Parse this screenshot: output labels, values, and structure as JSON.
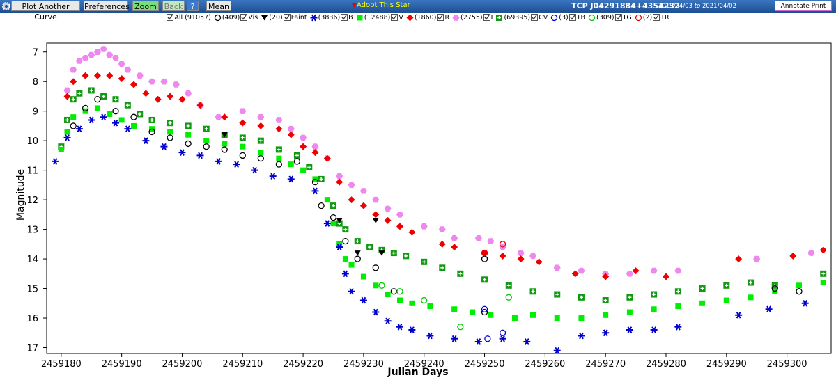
{
  "toolbar": {
    "buttons": [
      "Plot Another Curve",
      "Preferences",
      "Zoom",
      "Back",
      "?",
      "Mean"
    ],
    "adopt": "Adopt This Star",
    "star": "TCP J04291884+4354232",
    "date_from": "2019/04/03",
    "date_sep": "to",
    "date_to": "2021/04/02",
    "annotate": "Annotate Print"
  },
  "legend_all": "All (91057)",
  "chart_data": {
    "type": "scatter",
    "x_label": "Julian Days",
    "y_label": "Magnitude",
    "xlim": [
      2459177.6,
      2459307.3
    ],
    "ylim": [
      17.2,
      6.7
    ],
    "xticks": [
      2459180,
      2459190,
      2459200,
      2459210,
      2459220,
      2459230,
      2459240,
      2459250,
      2459260,
      2459270,
      2459280,
      2459290,
      2459300
    ],
    "yticks": [
      7,
      8,
      9,
      10,
      11,
      12,
      13,
      14,
      15,
      16,
      17
    ],
    "grid": false,
    "series": [
      {
        "name": "Vis",
        "count_label": "(409)",
        "marker": "circle",
        "color": "#000000",
        "x": [
          2459182,
          2459184,
          2459186,
          2459189,
          2459192,
          2459195,
          2459198,
          2459201,
          2459204,
          2459207,
          2459210,
          2459213,
          2459216,
          2459219,
          2459222,
          2459223,
          2459225,
          2459227,
          2459229,
          2459232,
          2459235,
          2459250,
          2459250,
          2459298,
          2459302
        ],
        "values": [
          9.5,
          8.9,
          8.6,
          9.0,
          9.2,
          9.7,
          9.9,
          10.1,
          10.2,
          10.3,
          10.5,
          10.6,
          10.8,
          10.7,
          11.4,
          12.2,
          12.6,
          13.4,
          14.0,
          14.3,
          15.1,
          14.0,
          15.8,
          15.0,
          15.1
        ]
      },
      {
        "name": "Faint",
        "count_label": "(20)",
        "marker": "triangle",
        "color": "#000000",
        "x": [
          2459207,
          2459226,
          2459229,
          2459232,
          2459233
        ],
        "values": [
          9.8,
          12.7,
          13.8,
          12.7,
          13.8
        ]
      },
      {
        "name": "B",
        "count_label": "(3836)",
        "marker": "asterisk",
        "color": "#0000cc",
        "x": [
          2459179,
          2459181,
          2459183,
          2459185,
          2459187,
          2459189,
          2459191,
          2459194,
          2459197,
          2459200,
          2459203,
          2459206,
          2459209,
          2459212,
          2459215,
          2459218,
          2459222,
          2459224,
          2459226,
          2459227,
          2459228,
          2459230,
          2459232,
          2459234,
          2459236,
          2459238,
          2459241,
          2459245,
          2459249,
          2459253,
          2459257,
          2459262,
          2459266,
          2459270,
          2459274,
          2459278,
          2459282,
          2459292,
          2459297,
          2459303
        ],
        "values": [
          10.7,
          9.9,
          9.6,
          9.3,
          9.2,
          9.4,
          9.6,
          10.0,
          10.2,
          10.4,
          10.5,
          10.7,
          10.8,
          11.0,
          11.2,
          11.3,
          11.7,
          12.8,
          13.6,
          14.5,
          15.1,
          15.4,
          15.8,
          16.1,
          16.3,
          16.4,
          16.6,
          16.7,
          16.8,
          16.7,
          16.8,
          17.1,
          16.6,
          16.5,
          16.4,
          16.4,
          16.3,
          15.9,
          15.7,
          15.5
        ]
      },
      {
        "name": "V",
        "count_label": "(12488)",
        "marker": "square",
        "color": "#00ee00",
        "x": [
          2459180,
          2459181,
          2459182,
          2459184,
          2459186,
          2459188,
          2459190,
          2459192,
          2459195,
          2459198,
          2459201,
          2459204,
          2459207,
          2459210,
          2459213,
          2459216,
          2459218,
          2459220,
          2459222,
          2459224,
          2459225,
          2459226,
          2459227,
          2459228,
          2459230,
          2459232,
          2459234,
          2459236,
          2459238,
          2459241,
          2459245,
          2459248,
          2459251,
          2459255,
          2459258,
          2459262,
          2459266,
          2459270,
          2459274,
          2459278,
          2459282,
          2459286,
          2459290,
          2459294,
          2459298,
          2459302,
          2459306
        ],
        "values": [
          10.3,
          9.7,
          9.2,
          9.0,
          8.9,
          9.1,
          9.3,
          9.5,
          9.6,
          9.7,
          9.8,
          10.0,
          10.1,
          10.2,
          10.4,
          10.6,
          10.8,
          11.0,
          11.3,
          12.0,
          12.8,
          13.5,
          14.0,
          14.2,
          14.6,
          14.9,
          15.2,
          15.4,
          15.5,
          15.6,
          15.7,
          15.8,
          15.9,
          16.0,
          15.9,
          16.0,
          16.0,
          15.9,
          15.8,
          15.7,
          15.6,
          15.5,
          15.4,
          15.3,
          15.1,
          14.9,
          14.8
        ]
      },
      {
        "name": "R",
        "count_label": "(1860)",
        "marker": "diamond",
        "color": "#ee0000",
        "x": [
          2459181,
          2459182,
          2459184,
          2459186,
          2459188,
          2459190,
          2459192,
          2459194,
          2459196,
          2459198,
          2459200,
          2459203,
          2459207,
          2459210,
          2459213,
          2459216,
          2459218,
          2459220,
          2459222,
          2459224,
          2459226,
          2459228,
          2459230,
          2459232,
          2459234,
          2459236,
          2459238,
          2459243,
          2459245,
          2459250,
          2459253,
          2459256,
          2459259,
          2459265,
          2459270,
          2459275,
          2459280,
          2459292,
          2459301,
          2459306
        ],
        "values": [
          8.5,
          8.0,
          7.8,
          7.8,
          7.8,
          7.9,
          8.1,
          8.4,
          8.6,
          8.5,
          8.6,
          8.8,
          9.2,
          9.4,
          9.5,
          9.6,
          9.8,
          10.2,
          10.4,
          10.6,
          11.4,
          12.0,
          12.2,
          12.5,
          12.7,
          12.9,
          13.1,
          13.5,
          13.6,
          13.8,
          13.9,
          14.0,
          14.1,
          14.5,
          14.6,
          14.4,
          14.6,
          14.0,
          13.9,
          13.7
        ]
      },
      {
        "name": "I",
        "count_label": "(2755)",
        "marker": "hexagon",
        "color": "#ee88ee",
        "x": [
          2459181,
          2459182,
          2459183,
          2459184,
          2459185,
          2459186,
          2459187,
          2459188,
          2459189,
          2459190,
          2459191,
          2459193,
          2459195,
          2459197,
          2459199,
          2459201,
          2459203,
          2459206,
          2459210,
          2459213,
          2459216,
          2459218,
          2459220,
          2459222,
          2459224,
          2459226,
          2459228,
          2459230,
          2459232,
          2459234,
          2459236,
          2459240,
          2459243,
          2459245,
          2459249,
          2459251,
          2459253,
          2459256,
          2459258,
          2459262,
          2459266,
          2459270,
          2459274,
          2459278,
          2459282,
          2459295,
          2459304
        ],
        "values": [
          8.3,
          7.6,
          7.3,
          7.2,
          7.1,
          7.0,
          6.9,
          7.1,
          7.2,
          7.4,
          7.6,
          7.8,
          8.0,
          8.0,
          8.1,
          8.4,
          8.8,
          9.2,
          9.0,
          9.2,
          9.3,
          9.6,
          9.9,
          10.2,
          10.6,
          11.2,
          11.5,
          11.7,
          12.0,
          12.3,
          12.5,
          12.9,
          13.0,
          13.3,
          13.3,
          13.4,
          13.6,
          13.8,
          13.9,
          14.3,
          14.4,
          14.5,
          14.5,
          14.4,
          14.4,
          14.0,
          13.8
        ]
      },
      {
        "name": "CV",
        "count_label": "(69395)",
        "marker": "crossbox",
        "color": "#119911",
        "x": [
          2459180,
          2459181,
          2459182,
          2459183,
          2459185,
          2459187,
          2459189,
          2459191,
          2459193,
          2459195,
          2459198,
          2459201,
          2459204,
          2459207,
          2459210,
          2459213,
          2459216,
          2459219,
          2459221,
          2459223,
          2459225,
          2459226,
          2459227,
          2459229,
          2459231,
          2459233,
          2459235,
          2459237,
          2459240,
          2459243,
          2459246,
          2459250,
          2459254,
          2459258,
          2459262,
          2459266,
          2459270,
          2459274,
          2459278,
          2459282,
          2459286,
          2459290,
          2459294,
          2459298,
          2459306
        ],
        "values": [
          10.2,
          9.3,
          8.6,
          8.4,
          8.3,
          8.5,
          8.6,
          8.8,
          9.1,
          9.3,
          9.4,
          9.5,
          9.6,
          9.8,
          9.9,
          10.0,
          10.3,
          10.5,
          10.9,
          11.3,
          12.2,
          12.8,
          13.0,
          13.4,
          13.6,
          13.7,
          13.8,
          13.9,
          14.1,
          14.3,
          14.5,
          14.7,
          14.9,
          15.1,
          15.2,
          15.3,
          15.4,
          15.3,
          15.2,
          15.1,
          15.0,
          14.9,
          14.8,
          14.9,
          14.5
        ]
      },
      {
        "name": "TB",
        "count_label": "(3)",
        "marker": "circle",
        "color": "#0000cc",
        "x": [
          2459250,
          2459250.5,
          2459253
        ],
        "values": [
          15.7,
          16.7,
          16.5
        ]
      },
      {
        "name": "TG",
        "count_label": "(309)",
        "marker": "circle",
        "color": "#00cc00",
        "x": [
          2459233,
          2459236,
          2459240,
          2459246,
          2459254
        ],
        "values": [
          14.9,
          15.1,
          15.4,
          16.3,
          15.3
        ]
      },
      {
        "name": "TR",
        "count_label": "(2)",
        "marker": "circle",
        "color": "#ee0000",
        "x": [
          2459250,
          2459253
        ],
        "values": [
          13.8,
          13.5
        ]
      }
    ]
  }
}
